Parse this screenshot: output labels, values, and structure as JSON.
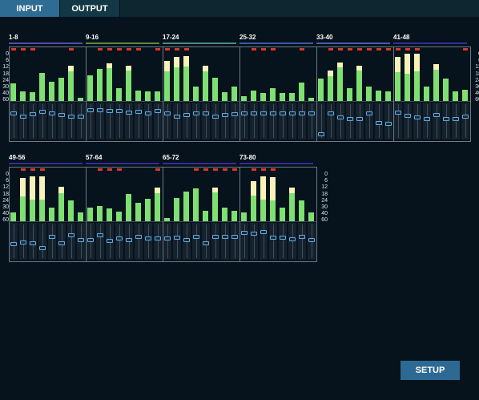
{
  "tabs": [
    {
      "label": "INPUT",
      "active": true
    },
    {
      "label": "OUTPUT",
      "active": false
    }
  ],
  "scale_labels": [
    "0",
    "6",
    "12",
    "18",
    "24",
    "30",
    "40",
    "60"
  ],
  "setup_label": "SETUP",
  "colors": {
    "meter_green": "#7fe072",
    "meter_peak": "#f6f2b9",
    "clip_red": "#d23b2e",
    "fader_knob": "#6aa9d8",
    "active_tab": "#2f6c93"
  },
  "banks": [
    {
      "groups": [
        {
          "label": "1-8",
          "color": "#5a4aa8",
          "levels": [
            0.36,
            0.2,
            0.18,
            0.58,
            0.4,
            0.48,
            0.74,
            0.06
          ],
          "peaks": [
            0,
            0,
            0,
            0,
            0,
            0,
            0.12,
            0
          ],
          "clip": [
            1,
            1,
            1,
            0,
            0,
            0,
            1,
            0
          ],
          "faders": [
            0.74,
            0.66,
            0.72,
            0.8,
            0.74,
            0.7,
            0.64,
            0.64
          ]
        },
        {
          "label": "9-16",
          "color": "#5a8a3a",
          "levels": [
            0.54,
            0.66,
            0.78,
            0.26,
            0.74,
            0.22,
            0.2,
            0.2
          ],
          "peaks": [
            0,
            0,
            0.1,
            0,
            0.1,
            0,
            0,
            0
          ],
          "clip": [
            0,
            1,
            1,
            1,
            1,
            1,
            0,
            1
          ],
          "faders": [
            0.86,
            0.84,
            0.82,
            0.82,
            0.78,
            0.8,
            0.76,
            0.82
          ]
        },
        {
          "label": "17-24",
          "color": "#4a8a7a",
          "levels": [
            0.84,
            0.92,
            0.94,
            0.3,
            0.74,
            0.48,
            0.18,
            0.3
          ],
          "peaks": [
            0.22,
            0.22,
            0.22,
            0,
            0.12,
            0,
            0,
            0
          ],
          "clip": [
            1,
            1,
            1,
            0,
            0,
            0,
            0,
            0
          ],
          "faders": [
            0.74,
            0.64,
            0.7,
            0.74,
            0.74,
            0.64,
            0.7,
            0.72
          ]
        },
        {
          "label": "25-32",
          "color": "#3a5aa8",
          "levels": [
            0.1,
            0.22,
            0.16,
            0.26,
            0.16,
            0.16,
            0.38,
            0.06
          ],
          "peaks": [
            0,
            0,
            0,
            0,
            0,
            0,
            0,
            0
          ],
          "clip": [
            0,
            1,
            1,
            1,
            0,
            0,
            1,
            0
          ],
          "faders": [
            0.76,
            0.76,
            0.76,
            0.76,
            0.76,
            0.76,
            0.76,
            0.76
          ]
        },
        {
          "label": "33-40",
          "color": "#4a5ab0",
          "levels": [
            0.46,
            0.64,
            0.8,
            0.26,
            0.74,
            0.3,
            0.22,
            0.2
          ],
          "peaks": [
            0,
            0.12,
            0.1,
            0,
            0.1,
            0,
            0,
            0
          ],
          "clip": [
            0,
            1,
            1,
            1,
            1,
            1,
            1,
            1
          ],
          "faders": [
            0.1,
            0.76,
            0.62,
            0.58,
            0.58,
            0.76,
            0.44,
            0.42
          ]
        },
        {
          "label": "41-48",
          "color": "#3a2a9a",
          "levels": [
            0.92,
            0.98,
            0.98,
            0.3,
            0.76,
            0.46,
            0.2,
            0.24
          ],
          "peaks": [
            0.32,
            0.42,
            0.36,
            0,
            0.12,
            0,
            0,
            0
          ],
          "clip": [
            1,
            1,
            1,
            0,
            0,
            0,
            0,
            1
          ],
          "faders": [
            0.78,
            0.68,
            0.62,
            0.58,
            0.7,
            0.58,
            0.58,
            0.64
          ]
        }
      ]
    },
    {
      "groups": [
        {
          "label": "49-56",
          "color": "#3a2a9a",
          "levels": [
            0.18,
            0.9,
            0.94,
            0.94,
            0.28,
            0.72,
            0.44,
            0.18
          ],
          "peaks": [
            0,
            0.38,
            0.48,
            0.48,
            0,
            0.14,
            0,
            0
          ],
          "clip": [
            0,
            1,
            1,
            1,
            0,
            0,
            0,
            0
          ],
          "faders": [
            0.42,
            0.48,
            0.46,
            0.3,
            0.66,
            0.46,
            0.7,
            0.56
          ]
        },
        {
          "label": "57-64",
          "color": "#3a2a9a",
          "levels": [
            0.28,
            0.32,
            0.26,
            0.2,
            0.56,
            0.38,
            0.46,
            0.7
          ],
          "peaks": [
            0,
            0,
            0,
            0,
            0,
            0,
            0,
            0.12
          ],
          "clip": [
            0,
            1,
            1,
            1,
            0,
            0,
            0,
            1
          ],
          "faders": [
            0.56,
            0.7,
            0.52,
            0.6,
            0.56,
            0.64,
            0.6,
            0.6
          ]
        },
        {
          "label": "65-72",
          "color": "#3a2a9a",
          "levels": [
            0.06,
            0.48,
            0.62,
            0.68,
            0.22,
            0.7,
            0.28,
            0.22
          ],
          "peaks": [
            0,
            0,
            0,
            0,
            0,
            0.1,
            0,
            0
          ],
          "clip": [
            0,
            0,
            0,
            1,
            1,
            1,
            1,
            1
          ],
          "faders": [
            0.6,
            0.62,
            0.56,
            0.64,
            0.46,
            0.66,
            0.66,
            0.66
          ]
        },
        {
          "label": "73-80",
          "color": "#3a2a9a",
          "levels": [
            0.18,
            0.84,
            0.94,
            0.92,
            0.28,
            0.7,
            0.44,
            0.18
          ],
          "peaks": [
            0,
            0.3,
            0.48,
            0.48,
            0,
            0.12,
            0,
            0
          ],
          "clip": [
            0,
            1,
            1,
            1,
            0,
            0,
            0,
            0
          ],
          "faders": [
            0.78,
            0.76,
            0.8,
            0.62,
            0.62,
            0.58,
            0.64,
            0.54
          ]
        }
      ]
    }
  ]
}
